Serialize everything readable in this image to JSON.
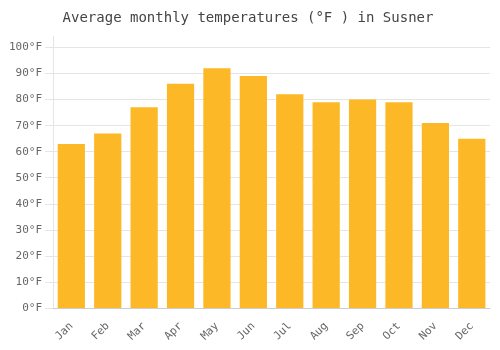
{
  "chart_data": {
    "type": "bar",
    "title": "Average monthly temperatures (°F ) in Susner",
    "categories": [
      "Jan",
      "Feb",
      "Mar",
      "Apr",
      "May",
      "Jun",
      "Jul",
      "Aug",
      "Sep",
      "Oct",
      "Nov",
      "Dec"
    ],
    "values": [
      63,
      67,
      77,
      86,
      92,
      89,
      82,
      79,
      80,
      79,
      71,
      65
    ],
    "color": "#FDB827",
    "ylim": [
      0,
      104
    ],
    "yticks": [
      {
        "value": 0,
        "label": "0°F"
      },
      {
        "value": 10,
        "label": "10°F"
      },
      {
        "value": 20,
        "label": "20°F"
      },
      {
        "value": 30,
        "label": "30°F"
      },
      {
        "value": 40,
        "label": "40°F"
      },
      {
        "value": 50,
        "label": "50°F"
      },
      {
        "value": 60,
        "label": "60°F"
      },
      {
        "value": 70,
        "label": "70°F"
      },
      {
        "value": 80,
        "label": "80°F"
      },
      {
        "value": 90,
        "label": "90°F"
      },
      {
        "value": 100,
        "label": "100°F"
      }
    ],
    "grid": true
  }
}
